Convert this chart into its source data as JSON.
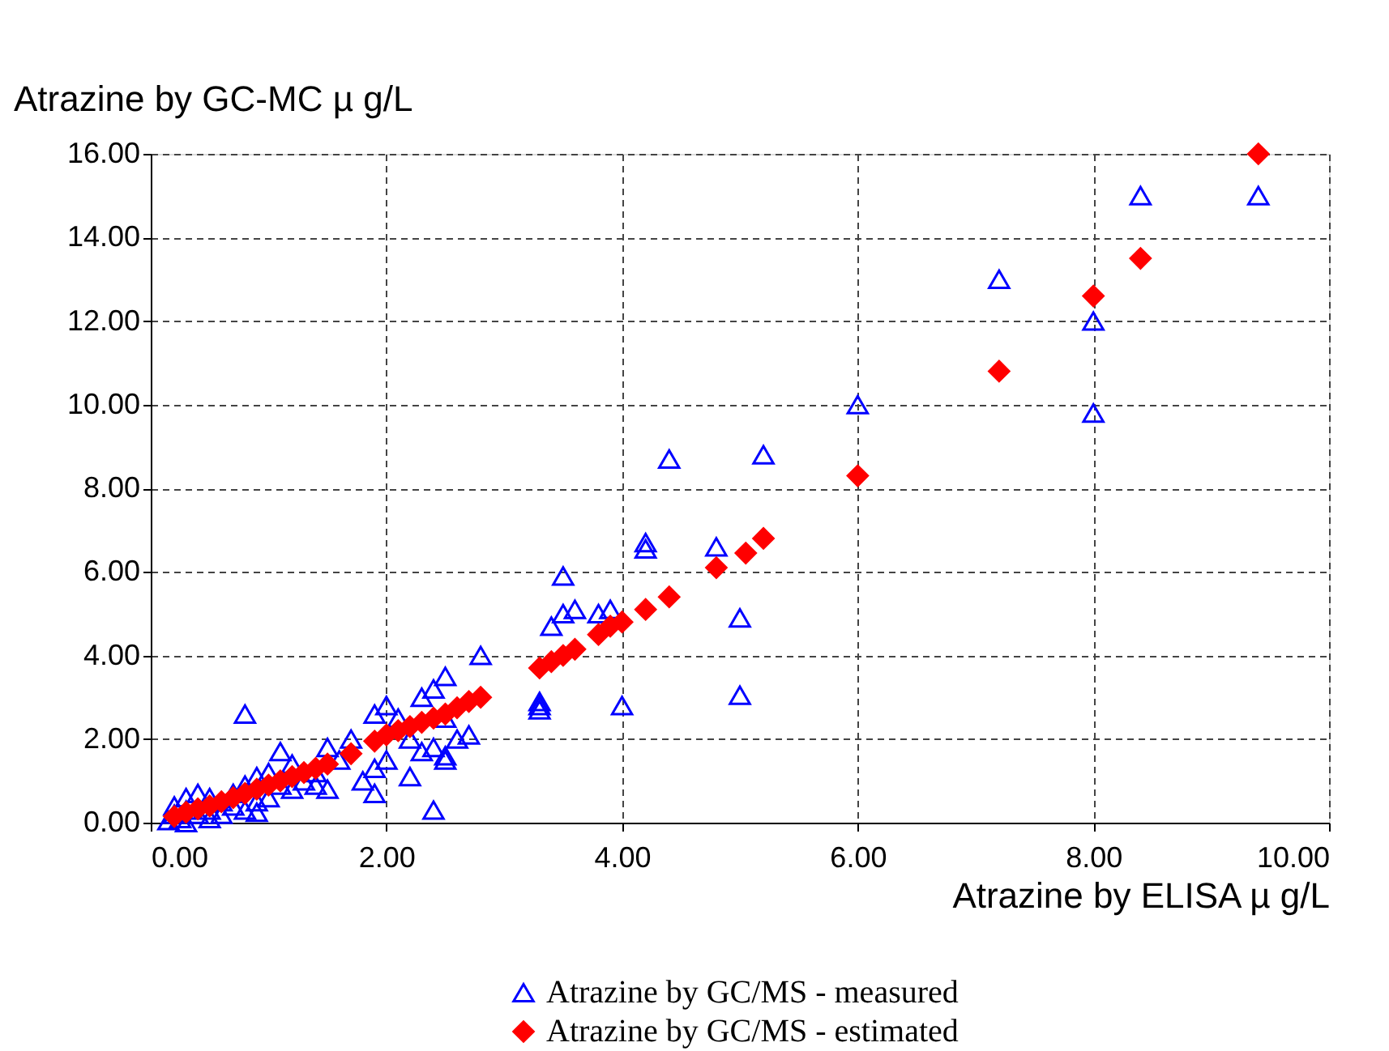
{
  "chart_data": {
    "type": "scatter",
    "xlabel": "Atrazine by ELISA   µ g/L",
    "ylabel": "Atrazine by GC-MC   µ g/L",
    "xlim": [
      0,
      10
    ],
    "ylim": [
      0,
      16
    ],
    "xticks": [
      {
        "value": 0,
        "label": "0.00"
      },
      {
        "value": 2,
        "label": "2.00"
      },
      {
        "value": 4,
        "label": "4.00"
      },
      {
        "value": 6,
        "label": "6.00"
      },
      {
        "value": 8,
        "label": "8.00"
      },
      {
        "value": 10,
        "label": "10.00"
      }
    ],
    "yticks": [
      {
        "value": 0,
        "label": "0.00"
      },
      {
        "value": 2,
        "label": "2.00"
      },
      {
        "value": 4,
        "label": "4.00"
      },
      {
        "value": 6,
        "label": "6.00"
      },
      {
        "value": 8,
        "label": "8.00"
      },
      {
        "value": 10,
        "label": "10.00"
      },
      {
        "value": 12,
        "label": "12.00"
      },
      {
        "value": 14,
        "label": "14.00"
      },
      {
        "value": 16,
        "label": "16.00"
      }
    ],
    "grid": true,
    "legend": "bottom",
    "series": [
      {
        "name": "Atrazine by GC/MS - measured",
        "color": "#0000ff",
        "marker": "triangle",
        "x": [
          9.4,
          8.4,
          7.2,
          8,
          8,
          6,
          4.4,
          5.2,
          4.2,
          4.2,
          4.8,
          5,
          5,
          4,
          3.5,
          3.4,
          3.5,
          3.6,
          3.8,
          3.9,
          3.3,
          3.3,
          3.3,
          2.4,
          2.8,
          2.5,
          2.4,
          2.3,
          2.5,
          2.6,
          2.7,
          2.5,
          2.5,
          2,
          2.1,
          1.9,
          1.9,
          1.8,
          1.9,
          2,
          1.7,
          1.5,
          1.6,
          1.4,
          1.5,
          1.1,
          1.2,
          1,
          0.8,
          0.9,
          0.8,
          0.7,
          0.6,
          0.5,
          0.4,
          0.3,
          0.2,
          0.2,
          0.25,
          0.3,
          0.4,
          0.5,
          0.6,
          0.7,
          0.8,
          0.9,
          1,
          1.1,
          1.2,
          1.3,
          1.4,
          2.2,
          2.3,
          2.4,
          2.2,
          0.15,
          0.3,
          0.5,
          0.9
        ],
        "values": [
          15,
          15,
          13,
          12,
          9.8,
          10,
          8.7,
          8.8,
          6.7,
          6.55,
          6.6,
          4.9,
          3.05,
          2.8,
          5.9,
          4.7,
          5,
          5.1,
          5,
          5.1,
          2.8,
          2.7,
          2.9,
          0.3,
          4,
          3.5,
          3.2,
          3,
          2.5,
          2,
          2.1,
          1.6,
          1.5,
          2.8,
          2.5,
          2.6,
          0.7,
          1,
          1.3,
          1.5,
          2,
          1.8,
          1.5,
          1.2,
          0.8,
          1.7,
          1.4,
          1.2,
          2.6,
          1.1,
          0.9,
          0.7,
          0.5,
          0.6,
          0.7,
          0.6,
          0.4,
          0.2,
          0.1,
          0.3,
          0.2,
          0.3,
          0.2,
          0.4,
          0.3,
          0.5,
          0.6,
          0.9,
          0.8,
          1,
          0.9,
          1.1,
          1.7,
          1.8,
          2,
          0.05,
          0,
          0.1,
          0.25
        ]
      },
      {
        "name": "Atrazine by GC/MS - estimated",
        "color": "#ff0000",
        "marker": "diamond",
        "x": [
          9.4,
          8.4,
          8,
          7.2,
          6,
          5.2,
          5.05,
          4.8,
          4.4,
          4.2,
          4,
          3.9,
          3.8,
          3.6,
          3.5,
          3.4,
          3.3,
          2.8,
          2.7,
          2.6,
          2.5,
          2.4,
          2.3,
          2.2,
          2.1,
          2,
          1.9,
          1.7,
          1.5,
          1.4,
          1.3,
          1.2,
          1.1,
          1,
          0.9,
          0.8,
          0.7,
          0.6,
          0.5,
          0.4,
          0.3,
          0.2
        ],
        "values": [
          16,
          13.5,
          12.6,
          10.8,
          8.3,
          6.8,
          6.45,
          6.1,
          5.4,
          5.1,
          4.8,
          4.7,
          4.5,
          4.15,
          4,
          3.85,
          3.7,
          3,
          2.9,
          2.75,
          2.6,
          2.5,
          2.4,
          2.3,
          2.2,
          2.1,
          1.95,
          1.65,
          1.4,
          1.3,
          1.2,
          1.1,
          1,
          0.9,
          0.8,
          0.7,
          0.6,
          0.5,
          0.4,
          0.33,
          0.25,
          0.15
        ]
      }
    ]
  }
}
